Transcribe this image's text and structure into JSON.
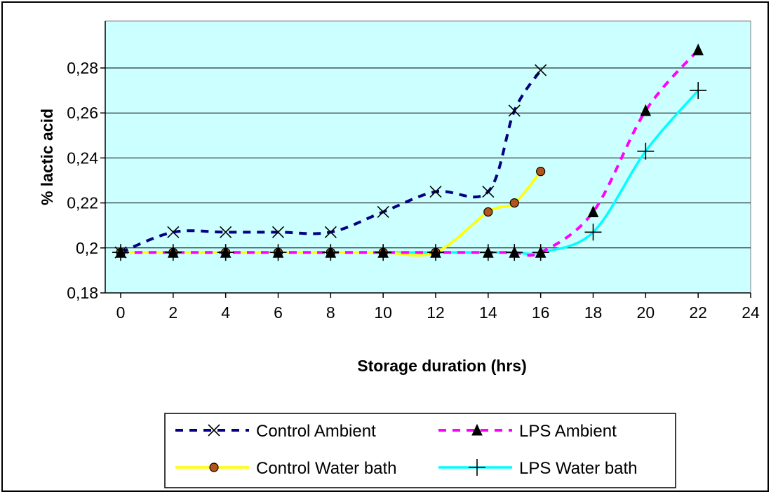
{
  "chart_data": {
    "type": "line",
    "title": "",
    "xlabel": "Storage duration (hrs)",
    "ylabel": "% lactic acid",
    "xlim": [
      0,
      24
    ],
    "ylim": [
      0.18,
      0.29
    ],
    "x_ticks": [
      0,
      2,
      4,
      6,
      8,
      10,
      12,
      14,
      16,
      18,
      20,
      22,
      24
    ],
    "x_tick_labels": [
      "0",
      "2",
      "4",
      "6",
      "8",
      "10",
      "12",
      "14",
      "16",
      "18",
      "20",
      "22",
      "24"
    ],
    "y_ticks": [
      0.18,
      0.2,
      0.22,
      0.24,
      0.26,
      0.28
    ],
    "y_tick_labels": [
      "0,18",
      "0,2",
      "0,22",
      "0,24",
      "0,26",
      "0,28"
    ],
    "grid": "horizontal",
    "plot_background": "#ccffff",
    "legend_position": "bottom",
    "series": [
      {
        "name": "Control Ambient",
        "color": "#000080",
        "line_style": "dashed",
        "marker": "x",
        "x": [
          0,
          2,
          4,
          6,
          8,
          10,
          12,
          14,
          15,
          16
        ],
        "y": [
          0.198,
          0.207,
          0.207,
          0.207,
          0.207,
          0.216,
          0.225,
          0.225,
          0.261,
          0.279
        ]
      },
      {
        "name": "LPS Ambient",
        "color": "#ff00ff",
        "line_style": "dashed",
        "marker": "triangle",
        "x": [
          0,
          2,
          4,
          6,
          8,
          10,
          12,
          14,
          15,
          16,
          18,
          20,
          22
        ],
        "y": [
          0.198,
          0.198,
          0.198,
          0.198,
          0.198,
          0.198,
          0.198,
          0.198,
          0.198,
          0.198,
          0.216,
          0.261,
          0.288
        ]
      },
      {
        "name": "Control Water bath",
        "color": "#ffff00",
        "line_style": "solid",
        "marker": "circle",
        "x": [
          0,
          2,
          4,
          6,
          8,
          10,
          12,
          14,
          15,
          16
        ],
        "y": [
          0.198,
          0.198,
          0.198,
          0.198,
          0.198,
          0.198,
          0.198,
          0.216,
          0.22,
          0.234
        ]
      },
      {
        "name": "LPS Water bath",
        "color": "#00ffff",
        "line_style": "solid",
        "marker": "plus",
        "x": [
          0,
          2,
          4,
          6,
          8,
          10,
          12,
          14,
          15,
          16,
          18,
          20,
          22
        ],
        "y": [
          0.198,
          0.198,
          0.198,
          0.198,
          0.198,
          0.198,
          0.198,
          0.198,
          0.198,
          0.198,
          0.207,
          0.243,
          0.27
        ]
      }
    ],
    "legend_order": [
      0,
      1,
      2,
      3
    ]
  }
}
